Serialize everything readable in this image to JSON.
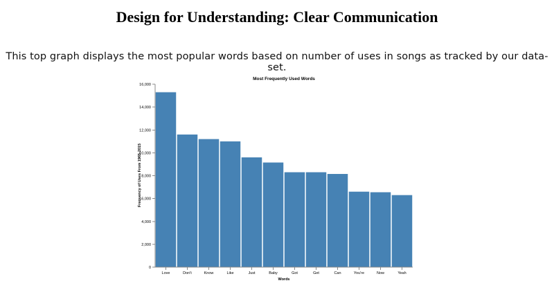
{
  "page": {
    "title": "Design for Understanding: Clear Communication",
    "intro": "This top graph displays the most popular words based on number of uses in songs as tracked by our data-set."
  },
  "colors": {
    "bar": "#4682b4",
    "axis": "#888888"
  },
  "chart_data": {
    "type": "bar",
    "title": "Most Frequently Used Words",
    "xlabel": "Words",
    "ylabel": "Frequency of Uses From 1965-2015",
    "categories": [
      "Love",
      "Don't",
      "Know",
      "Like",
      "Just",
      "Baby",
      "Got",
      "Get",
      "Can",
      "You're",
      "Now",
      "Yeah"
    ],
    "values": [
      15300,
      11600,
      11200,
      11000,
      9600,
      9150,
      8300,
      8300,
      8150,
      6600,
      6550,
      6300
    ],
    "ylim": [
      0,
      16000
    ],
    "yticks": [
      0,
      2000,
      4000,
      6000,
      8000,
      10000,
      12000,
      14000,
      16000
    ],
    "ytick_labels": [
      "0",
      "2,000",
      "4,000",
      "6,000",
      "8,000",
      "10,000",
      "12,000",
      "14,000",
      "16,000"
    ],
    "grid": false,
    "legend": "none"
  }
}
